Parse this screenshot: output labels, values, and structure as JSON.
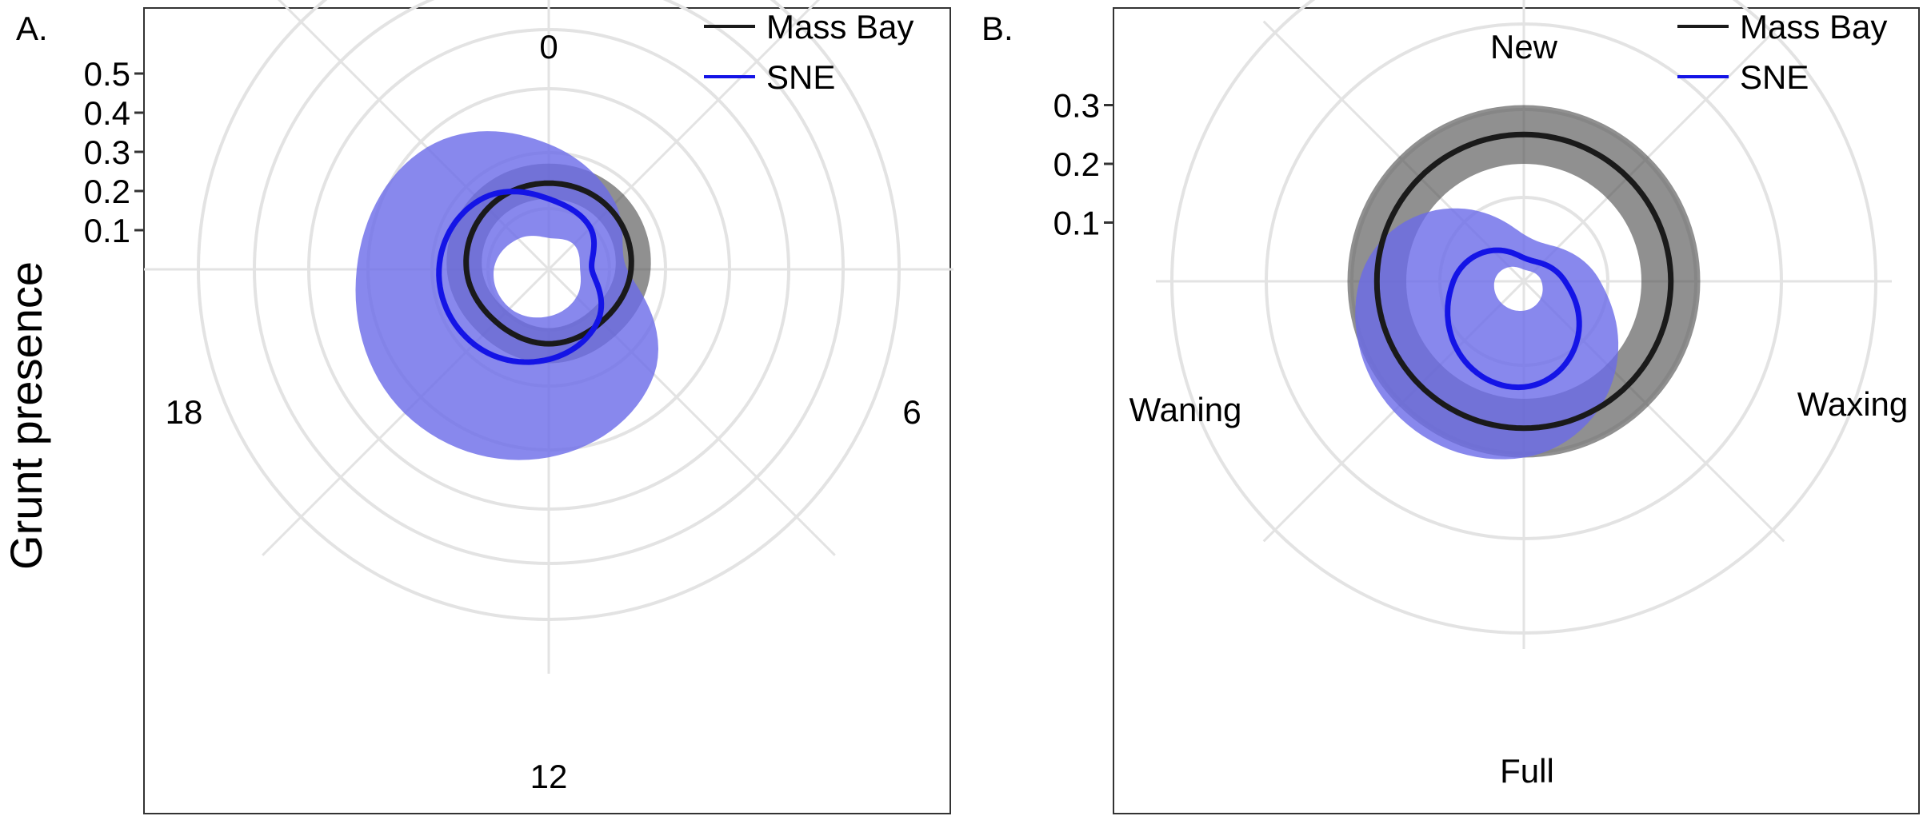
{
  "figure": {
    "ylabel": "Grunt presence"
  },
  "legend": [
    {
      "name": "Mass Bay",
      "color": "#1a1a1a"
    },
    {
      "name": "SNE",
      "color": "#1414e6"
    }
  ],
  "colors": {
    "massbay_line": "#1a1a1a",
    "massbay_band": "#555555",
    "sne_line": "#1414e6",
    "sne_band": "#6a6ae8",
    "grid": "#e3e3e3",
    "panel_border": "#333333"
  },
  "chart_data": [
    {
      "type": "line",
      "coordinate_system": "polar",
      "panel_label": "A.",
      "title": "",
      "xlabel": "",
      "ylabel": "Grunt presence",
      "theta_unit": "hour",
      "theta_ticks": [
        "0",
        "6",
        "12",
        "18"
      ],
      "radial_ticks": [
        0.1,
        0.2,
        0.3,
        0.4,
        0.5
      ],
      "radial_tick_labels": [
        "0.1",
        "0.2",
        "0.3",
        "0.4",
        "0.5"
      ],
      "rlim": [
        0,
        0.58
      ],
      "grid": true,
      "legend_position": "top-right",
      "series": [
        {
          "name": "Mass Bay",
          "theta": [
            0,
            3,
            6,
            9,
            12,
            15,
            18,
            21
          ],
          "values": [
            0.22,
            0.22,
            0.21,
            0.19,
            0.19,
            0.19,
            0.21,
            0.22
          ],
          "lower": [
            0.18,
            0.18,
            0.17,
            0.15,
            0.15,
            0.15,
            0.17,
            0.18
          ],
          "upper": [
            0.27,
            0.27,
            0.26,
            0.24,
            0.24,
            0.24,
            0.26,
            0.27
          ]
        },
        {
          "name": "SNE",
          "theta": [
            0,
            3,
            6,
            9,
            12,
            15,
            18,
            21
          ],
          "values": [
            0.18,
            0.15,
            0.11,
            0.18,
            0.23,
            0.27,
            0.28,
            0.25
          ],
          "lower": [
            0.08,
            0.09,
            0.08,
            0.1,
            0.12,
            0.14,
            0.14,
            0.11
          ],
          "upper": [
            0.32,
            0.24,
            0.2,
            0.38,
            0.48,
            0.52,
            0.49,
            0.44
          ]
        }
      ]
    },
    {
      "type": "line",
      "coordinate_system": "polar",
      "panel_label": "B.",
      "title": "",
      "xlabel": "",
      "ylabel": "",
      "theta_unit": "lunar phase",
      "theta_ticks": [
        "New",
        "Waxing",
        "Full",
        "Waning"
      ],
      "radial_ticks": [
        0.1,
        0.2,
        0.3
      ],
      "radial_tick_labels": [
        "0.1",
        "0.2",
        "0.3"
      ],
      "rlim": [
        0,
        0.35
      ],
      "grid": true,
      "legend_position": "top-right",
      "series": [
        {
          "name": "Mass Bay",
          "theta": [
            "New",
            "Waxing",
            "Full",
            "Waning"
          ],
          "values": [
            0.25,
            0.25,
            0.25,
            0.25
          ],
          "lower": [
            0.2,
            0.2,
            0.2,
            0.2
          ],
          "upper": [
            0.3,
            0.3,
            0.3,
            0.3
          ]
        },
        {
          "name": "SNE",
          "theta": [
            "New",
            "Waxing",
            "Full",
            "Waning"
          ],
          "values": [
            0.04,
            0.07,
            0.18,
            0.12
          ],
          "lower": [
            0.02,
            0.03,
            0.05,
            0.05
          ],
          "upper": [
            0.08,
            0.13,
            0.3,
            0.28
          ]
        }
      ]
    }
  ]
}
